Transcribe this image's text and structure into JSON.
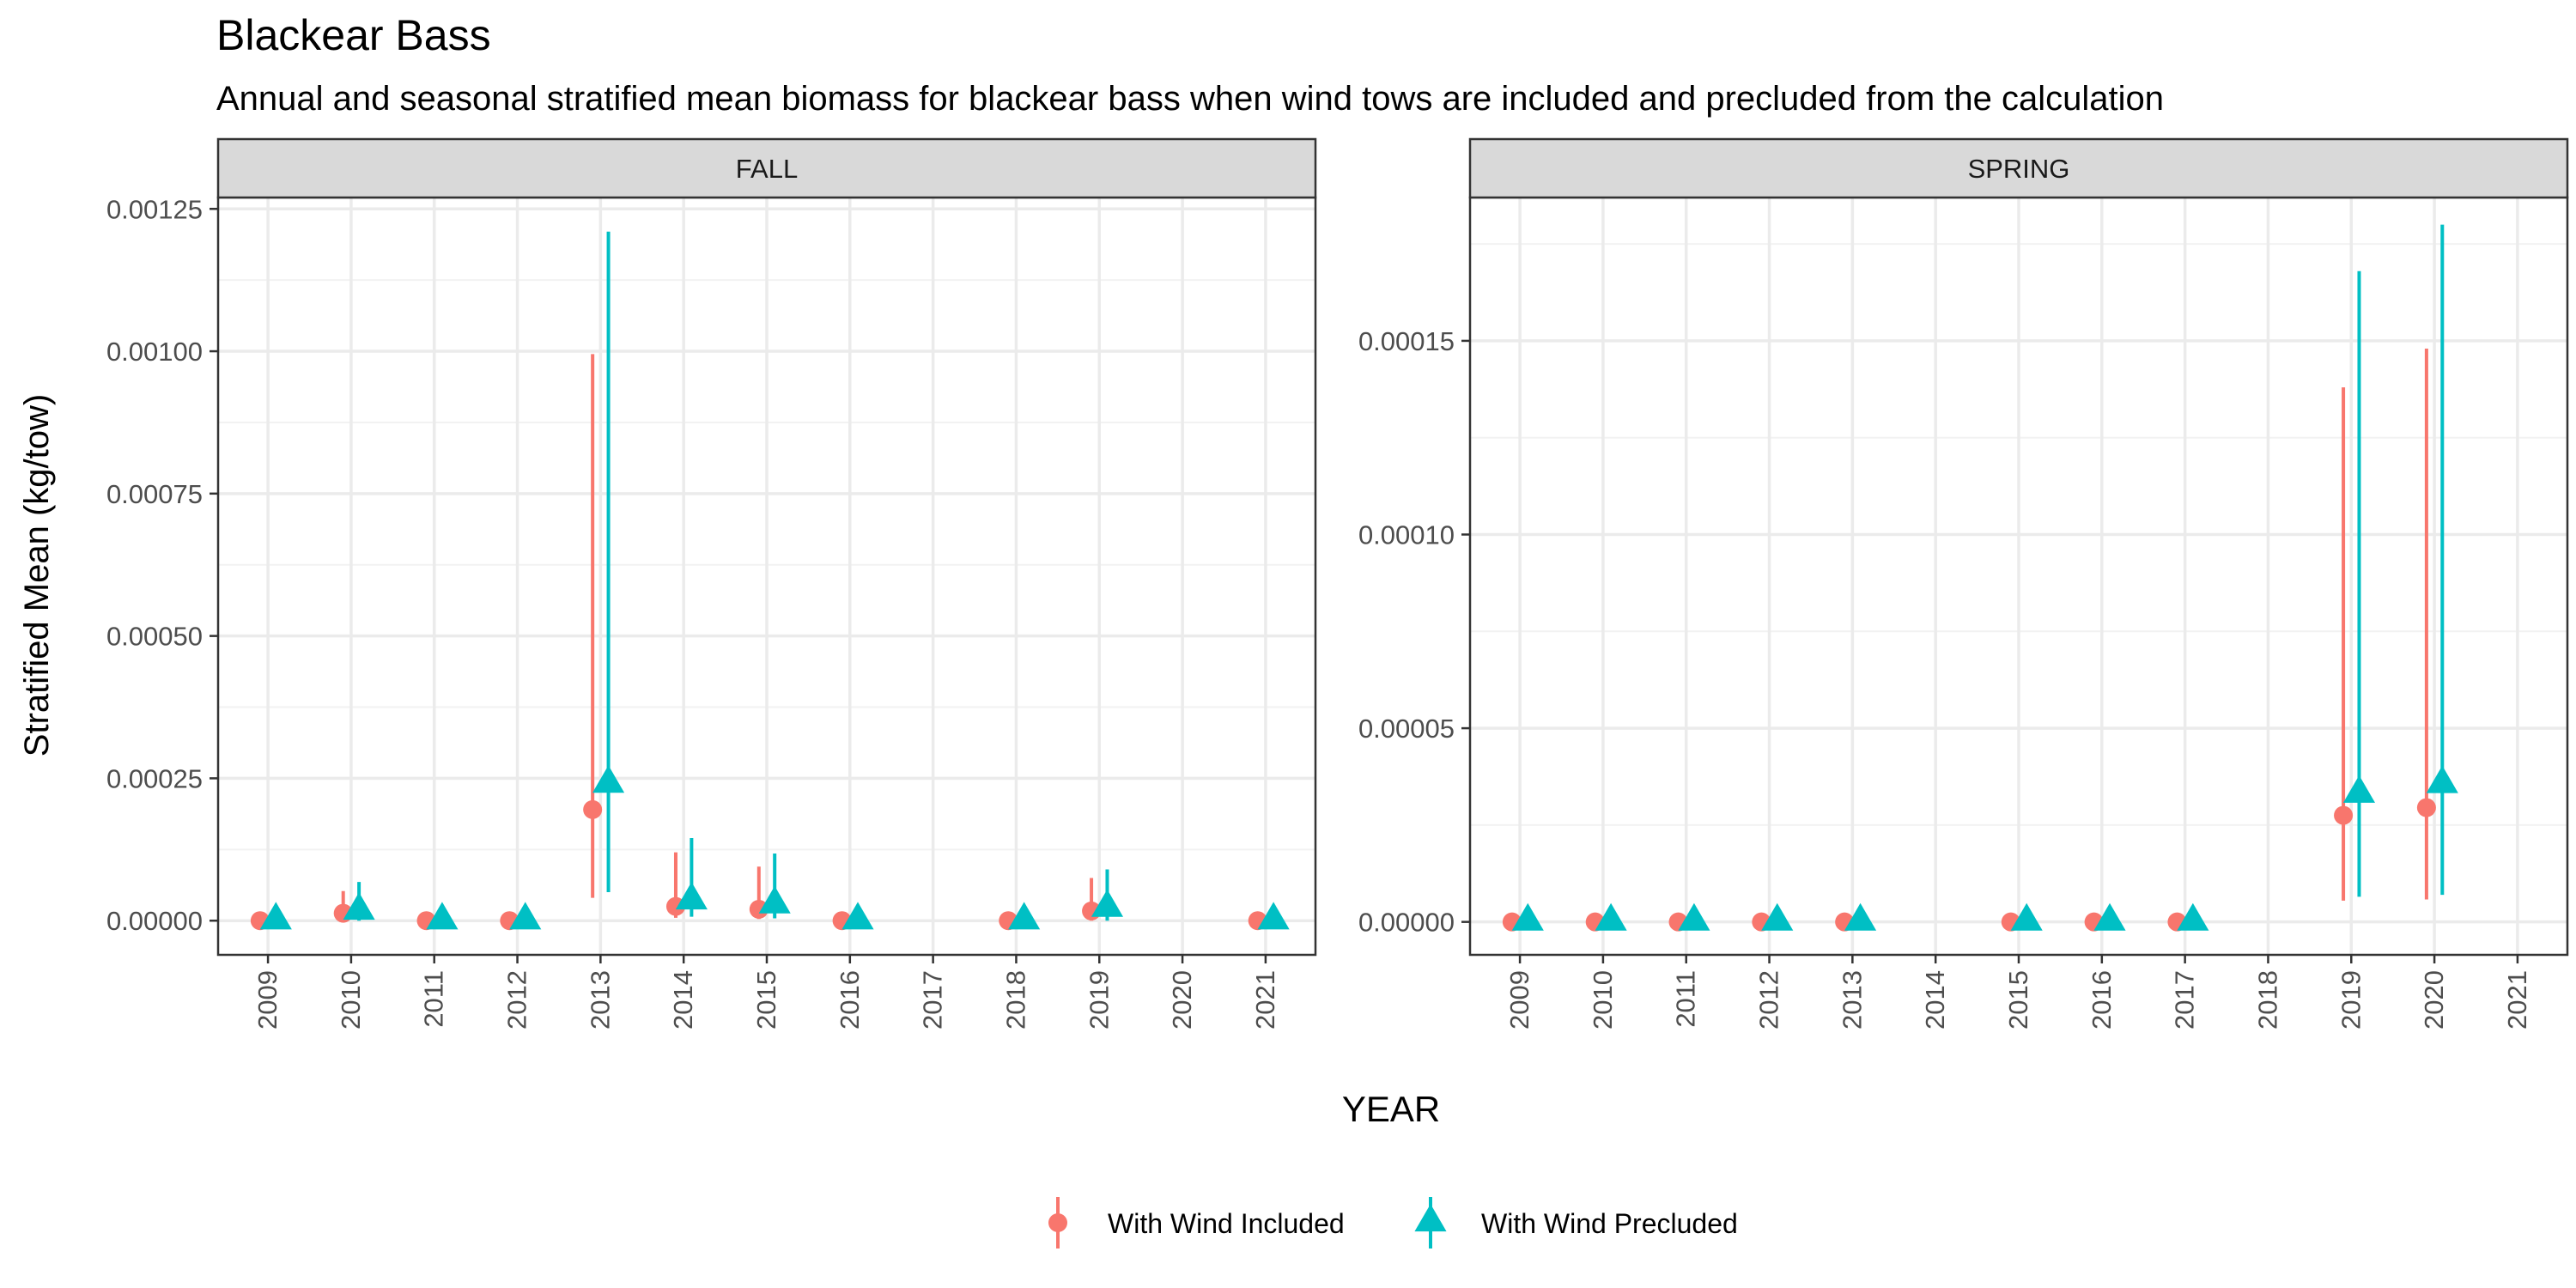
{
  "chart_data": {
    "type": "scatter",
    "title": "Blackear Bass",
    "subtitle": "Annual and seasonal stratified mean biomass for blackear bass when wind tows are included and precluded from the calculation",
    "xlabel": "YEAR",
    "ylabel": "Stratified Mean (kg/tow)",
    "legend": {
      "placement": "bottom",
      "entries": [
        {
          "name": "With Wind Included",
          "color": "#F8766D",
          "shape": "circle"
        },
        {
          "name": "With Wind Precluded",
          "color": "#00BFC4",
          "shape": "triangle"
        }
      ]
    },
    "grid": true,
    "panels": [
      {
        "label": "FALL",
        "x_categories": [
          "2009",
          "2010",
          "2011",
          "2012",
          "2013",
          "2014",
          "2015",
          "2016",
          "2017",
          "2018",
          "2019",
          "2020",
          "2021"
        ],
        "y_ticks": [
          "0.00000",
          "0.00025",
          "0.00050",
          "0.00075",
          "0.00100",
          "0.00125"
        ],
        "y_tick_values": [
          0,
          0.00025,
          0.0005,
          0.00075,
          0.001,
          0.00125
        ],
        "ylim": [
          -6e-05,
          0.00127
        ],
        "series": [
          {
            "name": "With Wind Included",
            "points": [
              {
                "x": "2009",
                "y": 0,
                "lo": 0,
                "hi": 0
              },
              {
                "x": "2010",
                "y": 1.3e-05,
                "lo": 0,
                "hi": 5.2e-05
              },
              {
                "x": "2011",
                "y": 0,
                "lo": 0,
                "hi": 0
              },
              {
                "x": "2012",
                "y": 0,
                "lo": 0,
                "hi": 0
              },
              {
                "x": "2013",
                "y": 0.000195,
                "lo": 4e-05,
                "hi": 0.000995
              },
              {
                "x": "2014",
                "y": 2.5e-05,
                "lo": 5e-06,
                "hi": 0.00012
              },
              {
                "x": "2015",
                "y": 2e-05,
                "lo": 3e-06,
                "hi": 9.5e-05
              },
              {
                "x": "2016",
                "y": 0,
                "lo": 0,
                "hi": 0
              },
              {
                "x": "2018",
                "y": 0,
                "lo": 0,
                "hi": 0
              },
              {
                "x": "2019",
                "y": 1.7e-05,
                "lo": 0,
                "hi": 7.5e-05
              },
              {
                "x": "2021",
                "y": 0,
                "lo": 0,
                "hi": 0
              }
            ]
          },
          {
            "name": "With Wind Precluded",
            "points": [
              {
                "x": "2009",
                "y": 0,
                "lo": 0,
                "hi": 0
              },
              {
                "x": "2010",
                "y": 1.7e-05,
                "lo": 0,
                "hi": 6.8e-05
              },
              {
                "x": "2011",
                "y": 0,
                "lo": 0,
                "hi": 0
              },
              {
                "x": "2012",
                "y": 0,
                "lo": 0,
                "hi": 0
              },
              {
                "x": "2013",
                "y": 0.00024,
                "lo": 5e-05,
                "hi": 0.00121
              },
              {
                "x": "2014",
                "y": 3.5e-05,
                "lo": 7e-06,
                "hi": 0.000145
              },
              {
                "x": "2015",
                "y": 2.8e-05,
                "lo": 4e-06,
                "hi": 0.000118
              },
              {
                "x": "2016",
                "y": 0,
                "lo": 0,
                "hi": 0
              },
              {
                "x": "2018",
                "y": 0,
                "lo": 0,
                "hi": 0
              },
              {
                "x": "2019",
                "y": 2.2e-05,
                "lo": 0,
                "hi": 9e-05
              },
              {
                "x": "2021",
                "y": 0,
                "lo": 0,
                "hi": 0
              }
            ]
          }
        ]
      },
      {
        "label": "SPRING",
        "x_categories": [
          "2009",
          "2010",
          "2011",
          "2012",
          "2013",
          "2014",
          "2015",
          "2016",
          "2017",
          "2018",
          "2019",
          "2020",
          "2021"
        ],
        "y_ticks": [
          "0.00000",
          "0.00005",
          "0.00010",
          "0.00015"
        ],
        "y_tick_values": [
          0,
          5e-05,
          0.0001,
          0.00015
        ],
        "ylim": [
          -8.5e-06,
          0.000187
        ],
        "series": [
          {
            "name": "With Wind Included",
            "points": [
              {
                "x": "2009",
                "y": 0,
                "lo": 0,
                "hi": 0
              },
              {
                "x": "2010",
                "y": 0,
                "lo": 0,
                "hi": 0
              },
              {
                "x": "2011",
                "y": 0,
                "lo": 0,
                "hi": 0
              },
              {
                "x": "2012",
                "y": 0,
                "lo": 0,
                "hi": 0
              },
              {
                "x": "2013",
                "y": 0,
                "lo": 0,
                "hi": 0
              },
              {
                "x": "2015",
                "y": 0,
                "lo": 0,
                "hi": 0
              },
              {
                "x": "2016",
                "y": 0,
                "lo": 0,
                "hi": 0
              },
              {
                "x": "2017",
                "y": 0,
                "lo": 0,
                "hi": 0
              },
              {
                "x": "2019",
                "y": 2.75e-05,
                "lo": 5.5e-06,
                "hi": 0.000138
              },
              {
                "x": "2020",
                "y": 2.95e-05,
                "lo": 5.8e-06,
                "hi": 0.000148
              }
            ]
          },
          {
            "name": "With Wind Precluded",
            "points": [
              {
                "x": "2009",
                "y": 0,
                "lo": 0,
                "hi": 0
              },
              {
                "x": "2010",
                "y": 0,
                "lo": 0,
                "hi": 0
              },
              {
                "x": "2011",
                "y": 0,
                "lo": 0,
                "hi": 0
              },
              {
                "x": "2012",
                "y": 0,
                "lo": 0,
                "hi": 0
              },
              {
                "x": "2013",
                "y": 0,
                "lo": 0,
                "hi": 0
              },
              {
                "x": "2015",
                "y": 0,
                "lo": 0,
                "hi": 0
              },
              {
                "x": "2016",
                "y": 0,
                "lo": 0,
                "hi": 0
              },
              {
                "x": "2017",
                "y": 0,
                "lo": 0,
                "hi": 0
              },
              {
                "x": "2019",
                "y": 3.3e-05,
                "lo": 6.5e-06,
                "hi": 0.000168
              },
              {
                "x": "2020",
                "y": 3.55e-05,
                "lo": 7e-06,
                "hi": 0.00018
              }
            ]
          }
        ]
      }
    ]
  }
}
